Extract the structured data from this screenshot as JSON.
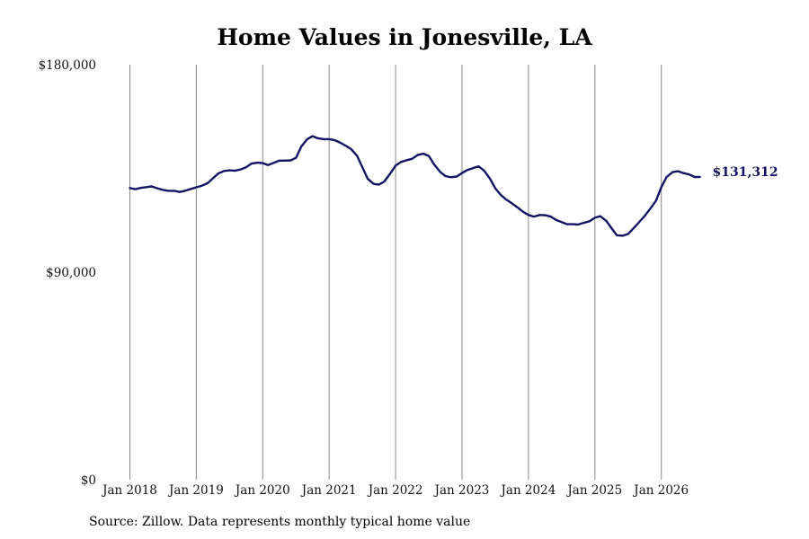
{
  "chart_data": {
    "type": "line",
    "title": "Home Values in Jonesville, LA",
    "xlabel": "",
    "ylabel": "",
    "ylim": [
      0,
      180000
    ],
    "y_ticks": [
      "$0",
      "$90,000",
      "$180,000"
    ],
    "y_tick_values": [
      0,
      90000,
      180000
    ],
    "x_ticks": [
      "Jan 2018",
      "Jan 2019",
      "Jan 2020",
      "Jan 2021",
      "Jan 2022",
      "Jan 2023",
      "Jan 2024",
      "Jan 2025",
      "Jan 2026"
    ],
    "x_tick_values": [
      2018.0,
      2019.0,
      2020.0,
      2021.0,
      2022.0,
      2023.0,
      2024.0,
      2025.0,
      2026.0
    ],
    "grid": "vertical",
    "line_color": "#141464",
    "end_label": "$131,312",
    "series": [
      {
        "x": [
          2018.0,
          2018.08,
          2018.17,
          2018.25,
          2018.33,
          2018.42,
          2018.5,
          2018.58,
          2018.67,
          2018.75,
          2018.83,
          2018.92,
          2019.0,
          2019.08,
          2019.17,
          2019.25,
          2019.33,
          2019.42,
          2019.5,
          2019.58,
          2019.67,
          2019.75,
          2019.83,
          2019.92,
          2020.0,
          2020.08,
          2020.17,
          2020.25,
          2020.33,
          2020.42,
          2020.5,
          2020.58,
          2020.67,
          2020.75,
          2020.83,
          2020.92,
          2021.0,
          2021.08,
          2021.17,
          2021.25,
          2021.33,
          2021.42,
          2021.5,
          2021.58,
          2021.67,
          2021.75,
          2021.83,
          2021.92,
          2022.0,
          2022.08,
          2022.17,
          2022.25,
          2022.33,
          2022.42,
          2022.5,
          2022.58,
          2022.67,
          2022.75,
          2022.83,
          2022.92,
          2023.0,
          2023.08,
          2023.17,
          2023.25,
          2023.33,
          2023.42,
          2023.5,
          2023.58,
          2023.67,
          2023.75,
          2023.83,
          2023.92,
          2024.0,
          2024.08,
          2024.17,
          2024.25,
          2024.33,
          2024.42,
          2024.5,
          2024.58,
          2024.67,
          2024.75,
          2024.83,
          2024.92,
          2025.0,
          2025.08,
          2025.17,
          2025.25,
          2025.33,
          2025.42,
          2025.5,
          2025.58,
          2025.67,
          2025.75,
          2025.83,
          2025.92,
          2026.0,
          2026.08,
          2026.17,
          2026.25,
          2026.33,
          2026.42,
          2026.5,
          2026.58
        ],
        "y": [
          126500,
          126000,
          126600,
          126900,
          127200,
          126300,
          125700,
          125300,
          125300,
          124800,
          125300,
          126100,
          126800,
          127500,
          128600,
          130700,
          132800,
          133900,
          134200,
          134000,
          134600,
          135500,
          137100,
          137500,
          137300,
          136500,
          137500,
          138400,
          138400,
          138500,
          139600,
          144500,
          147700,
          149000,
          148100,
          147700,
          147700,
          147300,
          146100,
          144800,
          143400,
          140500,
          135500,
          130500,
          128300,
          128000,
          129300,
          132800,
          136200,
          137800,
          138600,
          139200,
          140800,
          141400,
          140400,
          136700,
          133500,
          131700,
          131200,
          131500,
          133000,
          134300,
          135200,
          135900,
          134100,
          130600,
          126400,
          123600,
          121400,
          119900,
          118200,
          116200,
          114800,
          114100,
          114800,
          114700,
          114200,
          112600,
          111700,
          110800,
          110800,
          110700,
          111400,
          112100,
          113600,
          114300,
          112300,
          109100,
          106000,
          105800,
          106600,
          109000,
          111800,
          114400,
          117400,
          121000,
          126900,
          131300,
          133400,
          133800,
          133000,
          132400,
          131300,
          131312
        ]
      }
    ]
  },
  "source": "Source: Zillow. Data represents monthly typical home value"
}
